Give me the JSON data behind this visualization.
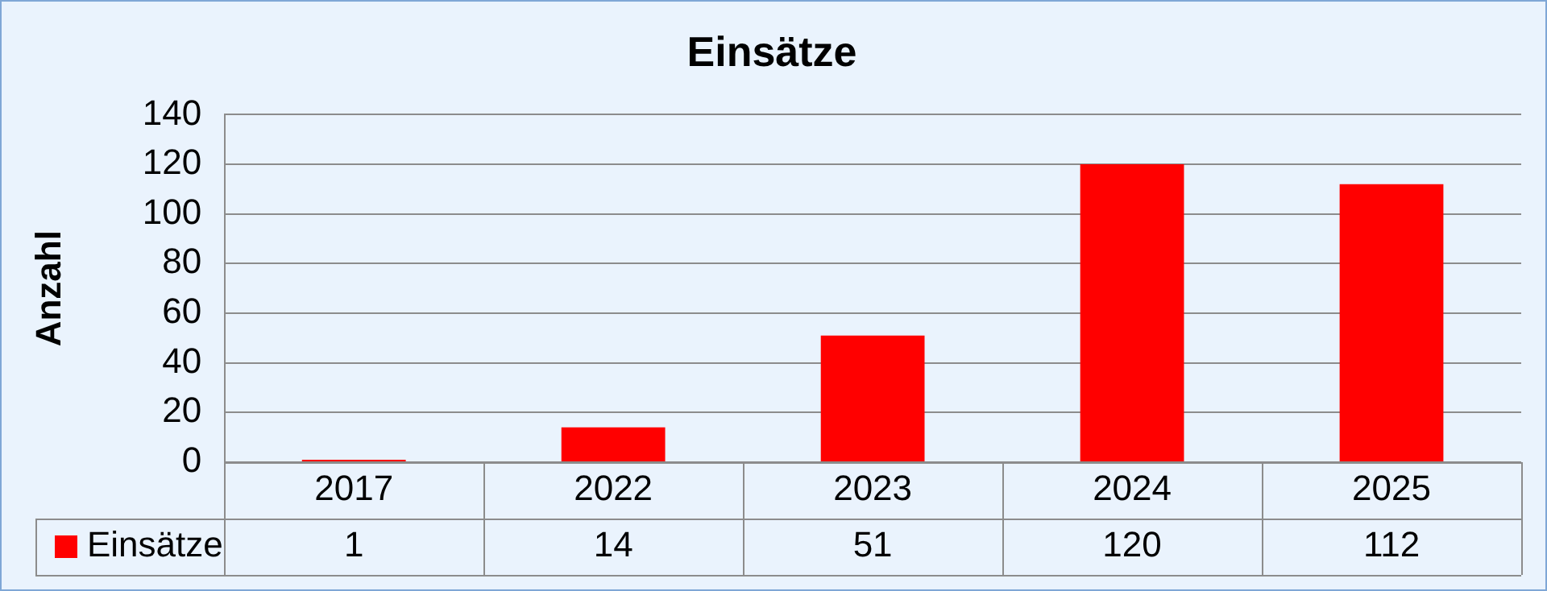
{
  "chart_data": {
    "type": "bar",
    "title": "Einsätze",
    "ylabel": "Anzahl",
    "categories": [
      "2017",
      "2022",
      "2023",
      "2024",
      "2025"
    ],
    "series": [
      {
        "name": "Einsätze",
        "color": "#ff0000",
        "values": [
          1,
          14,
          51,
          120,
          112
        ]
      }
    ],
    "ylim": [
      0,
      140
    ],
    "yticks": [
      0,
      20,
      40,
      60,
      80,
      100,
      120,
      140
    ],
    "grid": "y",
    "legend": "bottom",
    "data_labels": true
  }
}
